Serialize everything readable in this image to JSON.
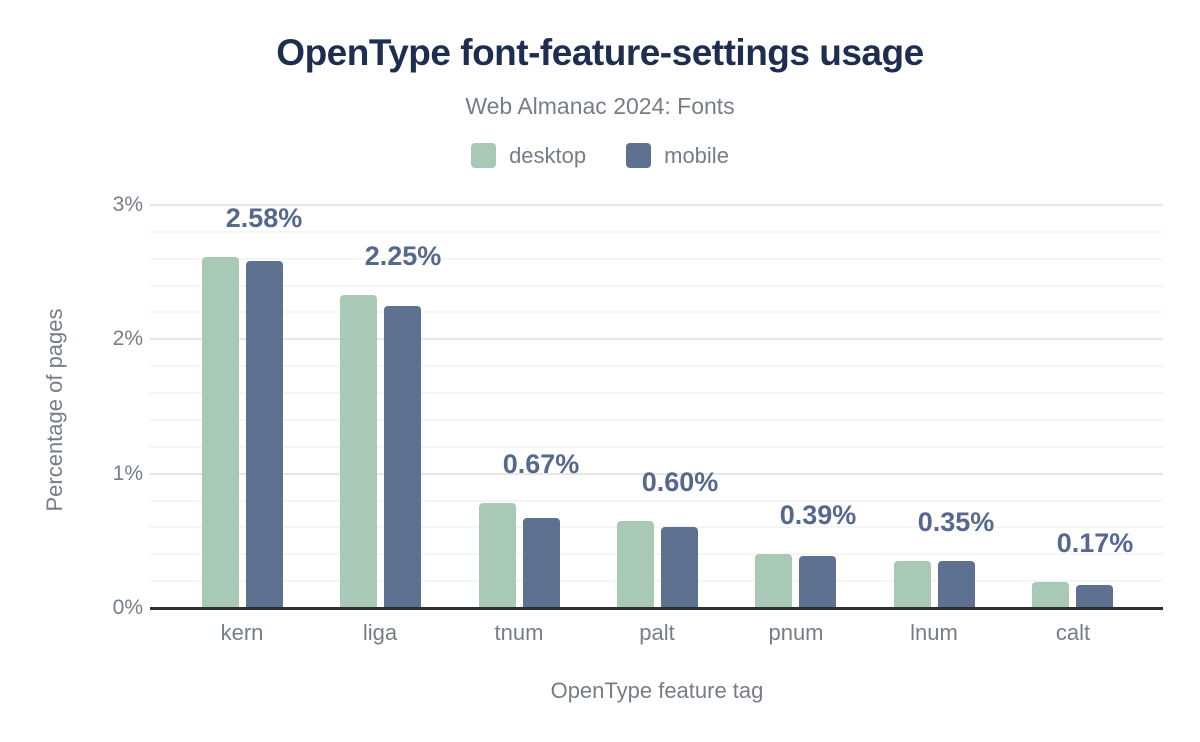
{
  "header": {
    "title": "OpenType font-feature-settings usage",
    "subtitle": "Web Almanac 2024: Fonts"
  },
  "legend": [
    {
      "label": "desktop",
      "color": "#a9c9b7"
    },
    {
      "label": "mobile",
      "color": "#5f7190"
    }
  ],
  "chart_data": {
    "type": "bar",
    "title": "OpenType font-feature-settings usage",
    "subtitle": "Web Almanac 2024: Fonts",
    "categories": [
      "kern",
      "liga",
      "tnum",
      "palt",
      "pnum",
      "lnum",
      "calt"
    ],
    "series": [
      {
        "name": "desktop",
        "color": "#a9c9b7",
        "values": [
          2.61,
          2.33,
          0.78,
          0.65,
          0.4,
          0.35,
          0.19
        ]
      },
      {
        "name": "mobile",
        "color": "#5f7190",
        "values": [
          2.58,
          2.25,
          0.67,
          0.6,
          0.39,
          0.35,
          0.17
        ]
      }
    ],
    "annotations": [
      "2.58%",
      "2.25%",
      "0.67%",
      "0.60%",
      "0.39%",
      "0.35%",
      "0.17%"
    ],
    "xlabel": "OpenType feature tag",
    "ylabel": "Percentage of pages",
    "ylim": [
      0,
      3
    ],
    "yticks": [
      {
        "value": 0,
        "label": "0%"
      },
      {
        "value": 1,
        "label": "1%"
      },
      {
        "value": 2,
        "label": "2%"
      },
      {
        "value": 3,
        "label": "3%"
      }
    ],
    "grid": {
      "major_step": 1,
      "minor_step": 0.2,
      "legend_position": "top"
    }
  },
  "colors": {
    "title": "#1e2e4f",
    "muted_text": "#767d87",
    "annotation": "#56698c",
    "axis_line": "#2e2e2e",
    "grid_major": "#e7e7e7",
    "grid_minor": "#f5f5f5",
    "background": "#ffffff"
  }
}
